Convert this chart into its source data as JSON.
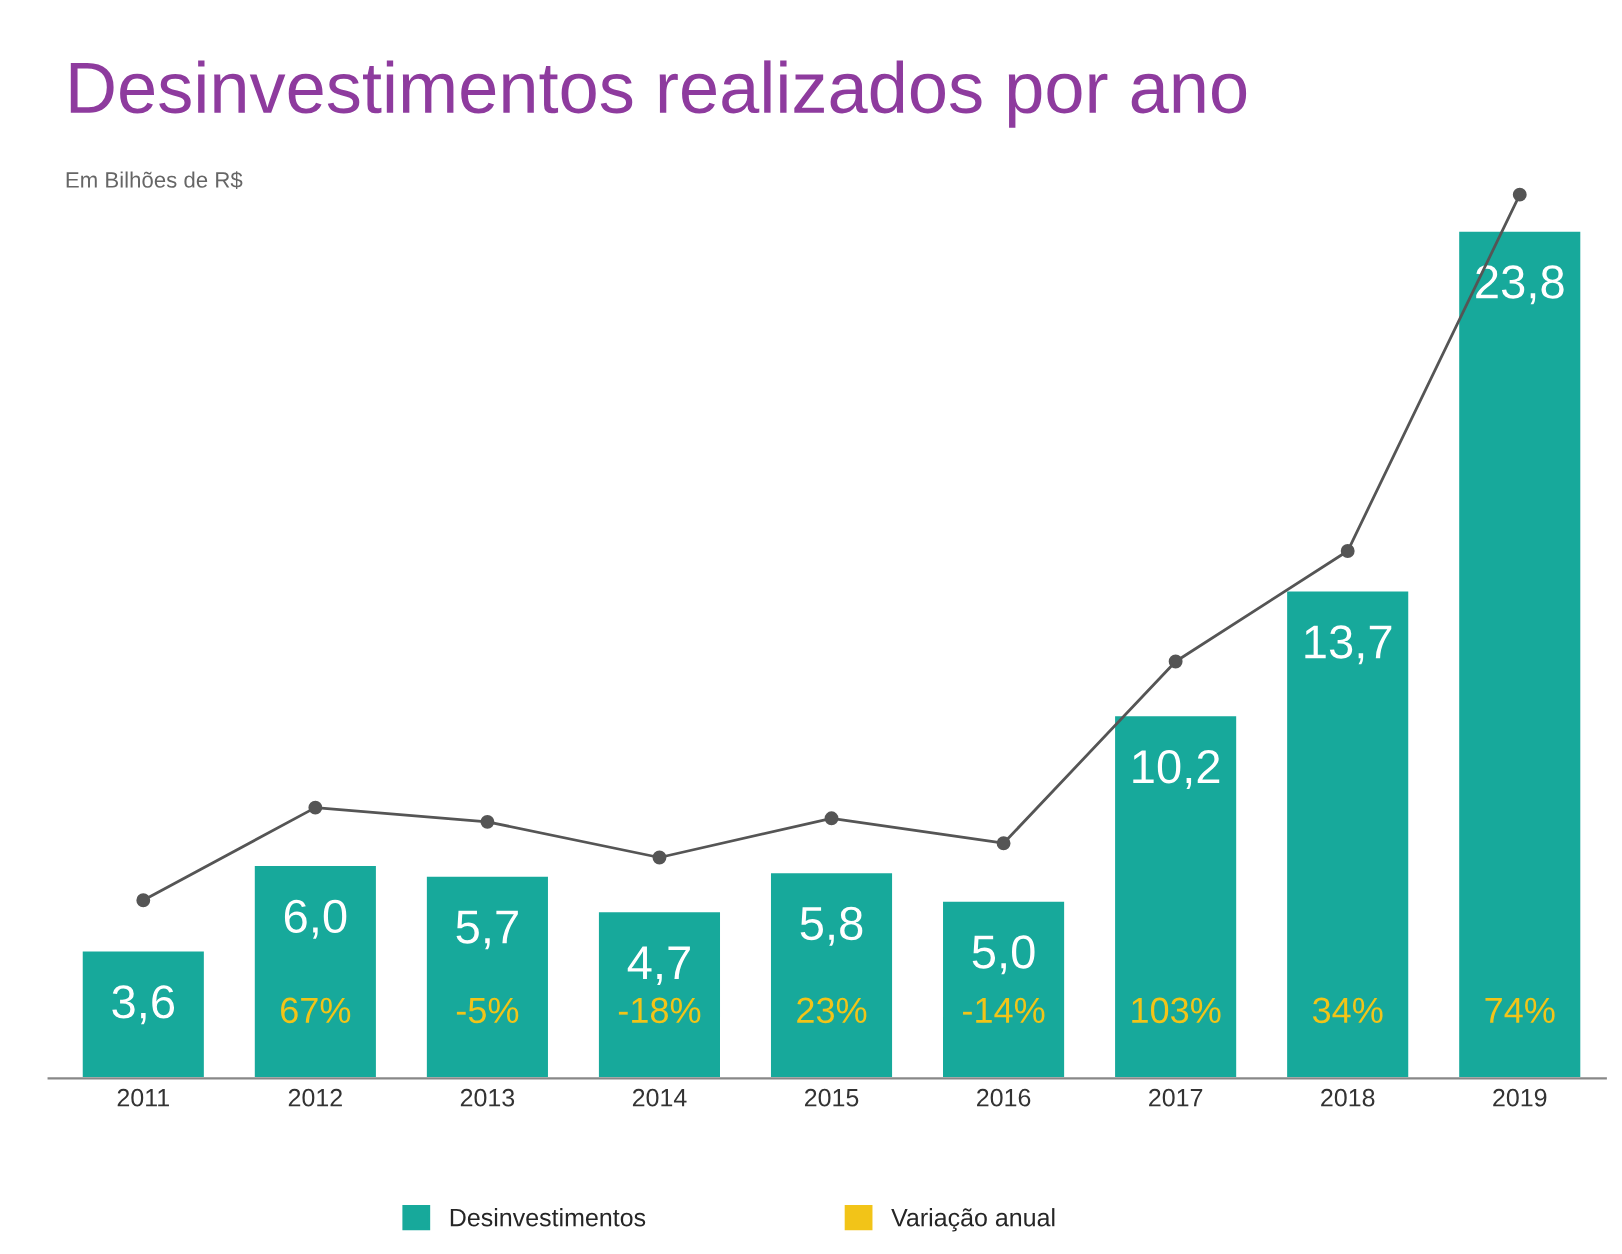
{
  "chart_data": {
    "type": "bar",
    "title": "Desinvestimentos realizados por ano",
    "subtitle": "Em Bilhões de R$",
    "categories": [
      "2011",
      "2012",
      "2013",
      "2014",
      "2015",
      "2016",
      "2017",
      "2018",
      "2019"
    ],
    "series": [
      {
        "name": "Desinvestimentos",
        "color": "#17a99b",
        "values": [
          3.6,
          6.0,
          5.7,
          4.7,
          5.8,
          5.0,
          10.2,
          13.7,
          23.8
        ],
        "value_labels": [
          "3,6",
          "6,0",
          "5,7",
          "4,7",
          "5,8",
          "5,0",
          "10,2",
          "13,7",
          "23,8"
        ]
      },
      {
        "name": "Variação anual",
        "color": "#f2c418",
        "type": "bar",
        "values": [
          null,
          null,
          null,
          null,
          null,
          null,
          null,
          null,
          null
        ],
        "value_labels": [
          null,
          "67%",
          "-5%",
          "-18%",
          "23%",
          "-14%",
          "103%",
          "34%",
          "74%"
        ]
      },
      {
        "type": "line",
        "color": "#555555",
        "marker": "circle",
        "values": [
          5.0,
          7.6,
          7.2,
          6.2,
          7.3,
          6.6,
          11.7,
          14.8,
          24.8
        ]
      }
    ],
    "legend": "bottom",
    "grid": false
  }
}
